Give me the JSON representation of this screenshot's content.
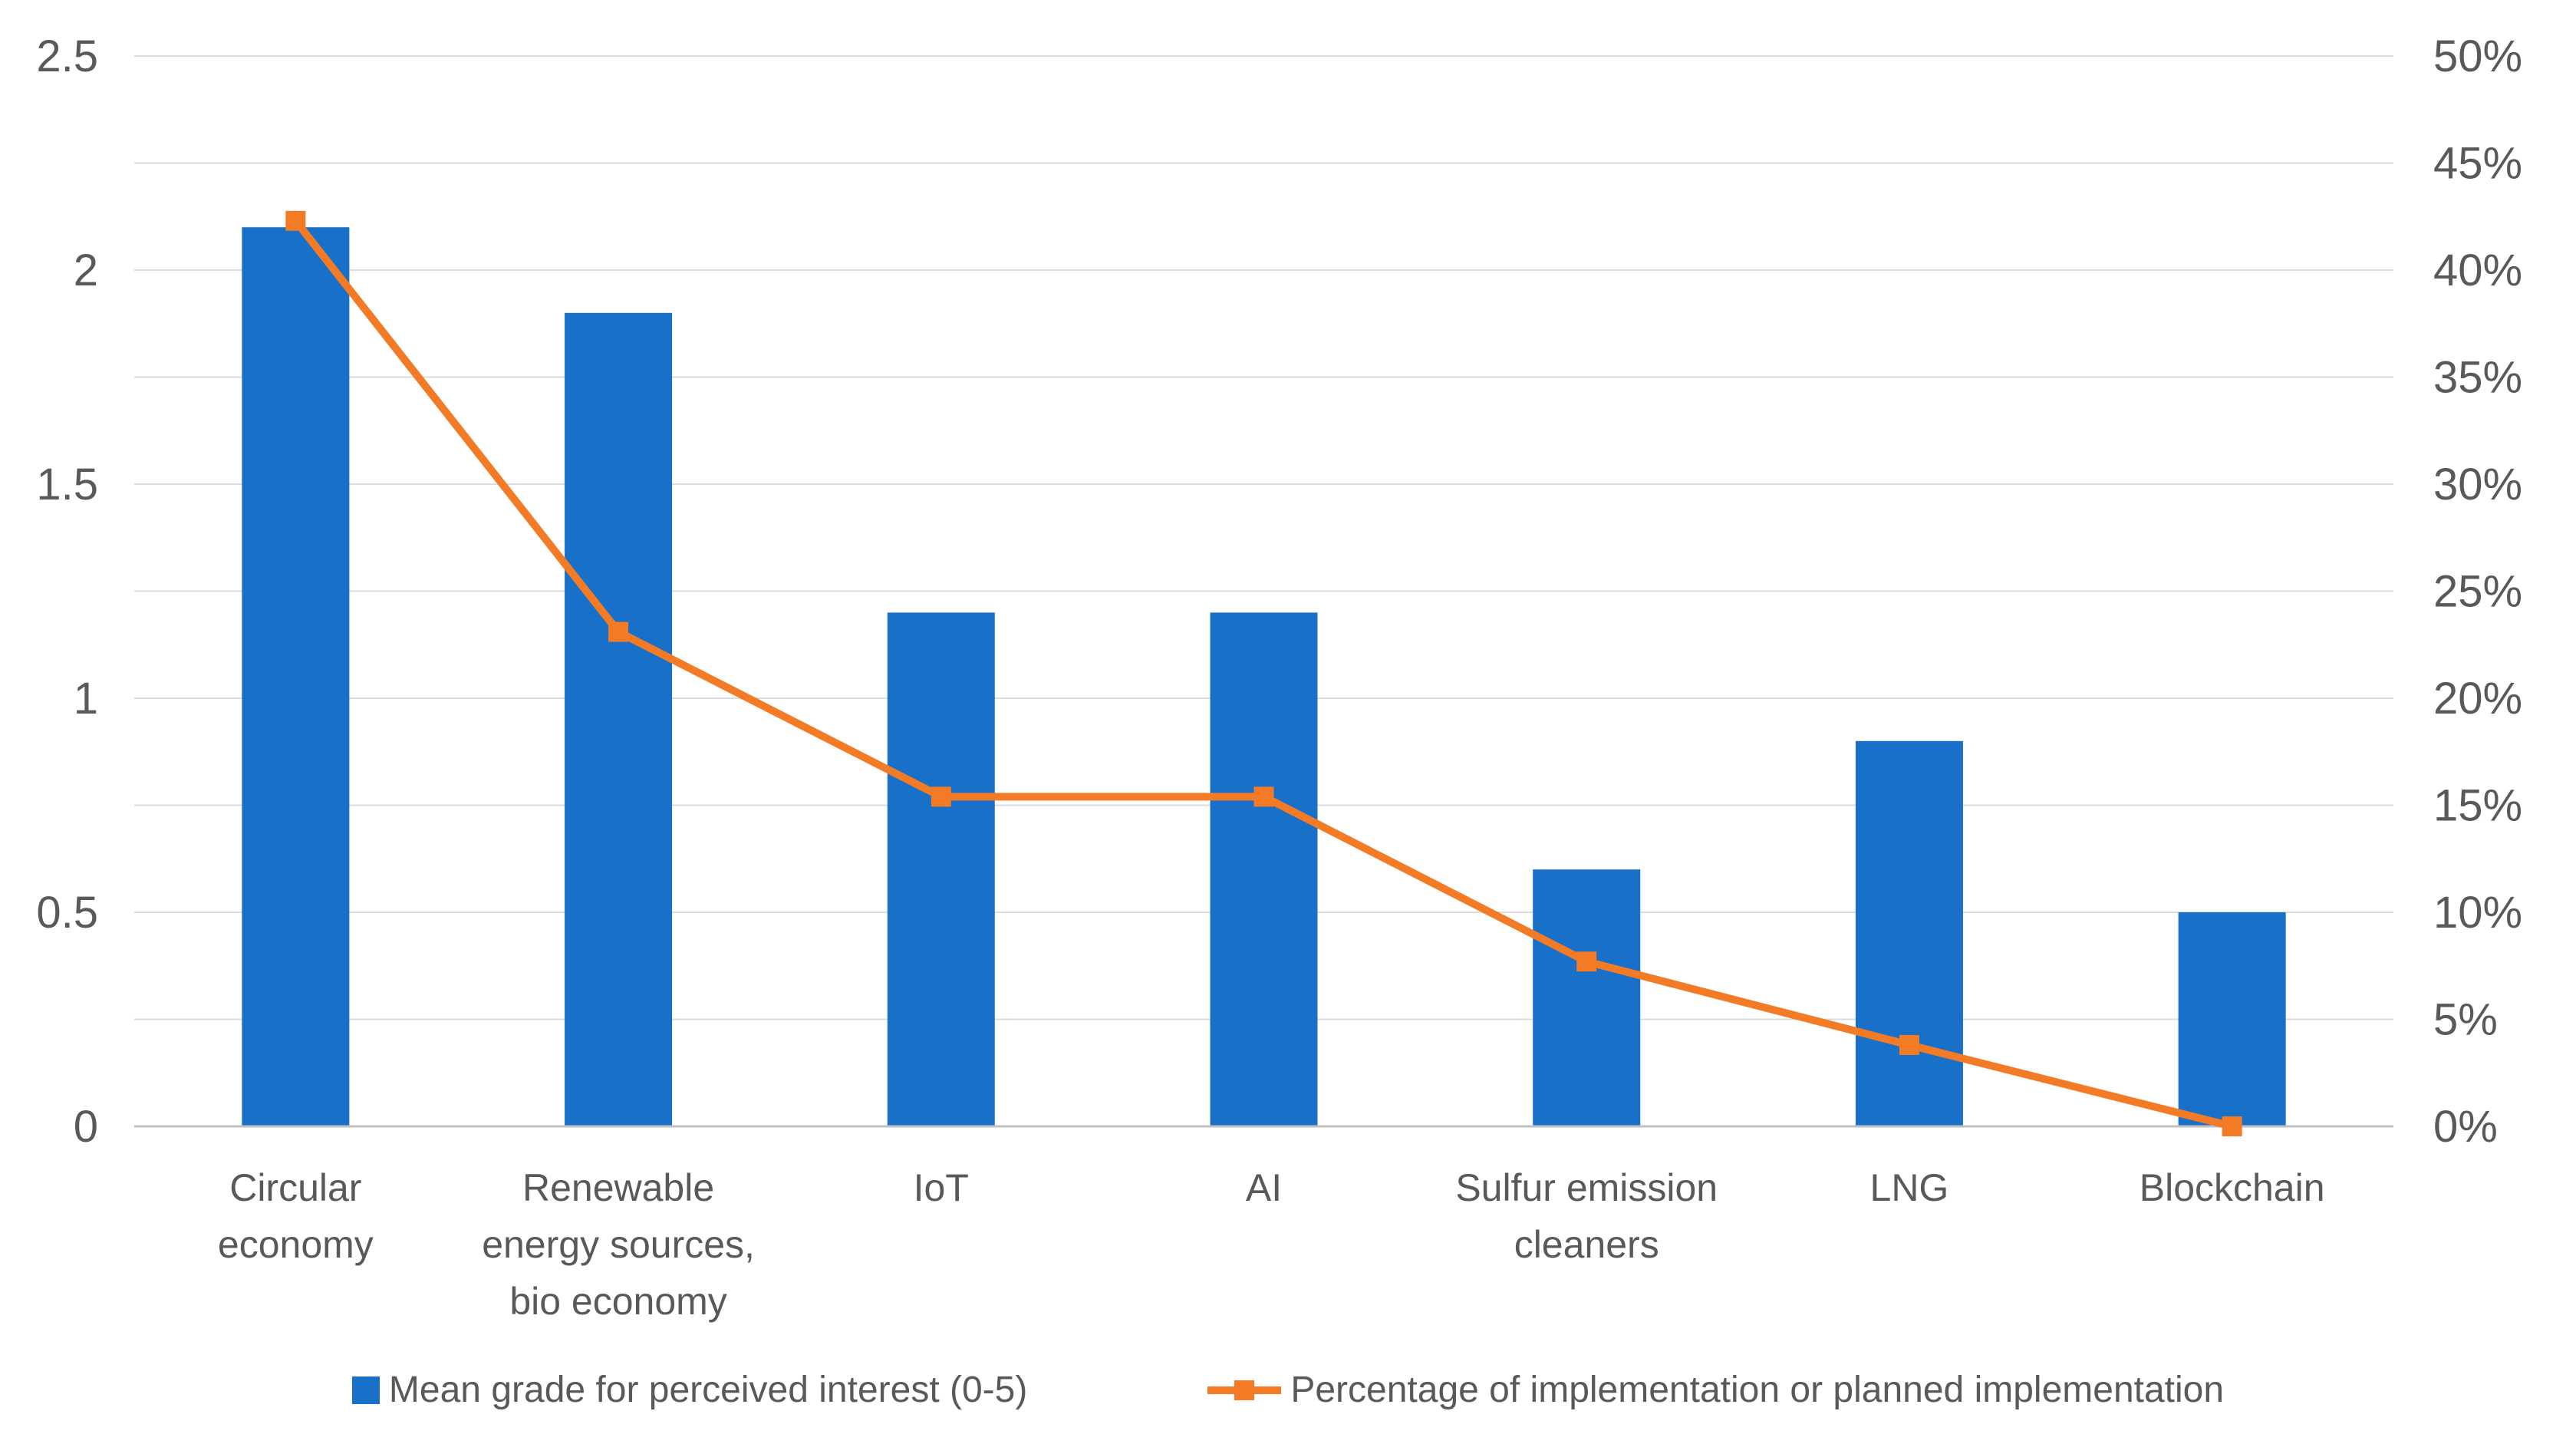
{
  "chart_data": {
    "type": "bar",
    "subtype": "combo-bar-line-two-axes",
    "title": "",
    "xlabel": "",
    "ylabel": "",
    "background": "#FFFFFF",
    "text_color": "#595959",
    "gridline_color": "#DCDCDC",
    "axis_line_color": "#C0C0C0",
    "grid": "horizontal",
    "legend_position": "bottom",
    "categories": [
      {
        "label": "Circular economy",
        "lines": [
          "Circular",
          "economy"
        ]
      },
      {
        "label": "Renewable energy sources, bio economy",
        "lines": [
          "Renewable",
          "energy sources,",
          "bio economy"
        ]
      },
      {
        "label": "IoT",
        "lines": [
          "IoT"
        ]
      },
      {
        "label": "AI",
        "lines": [
          "AI"
        ]
      },
      {
        "label": "Sulfur emission cleaners",
        "lines": [
          "Sulfur emission",
          "cleaners"
        ]
      },
      {
        "label": "LNG",
        "lines": [
          "LNG"
        ]
      },
      {
        "label": "Blockchain",
        "lines": [
          "Blockchain"
        ]
      }
    ],
    "series": [
      {
        "name": "Mean grade for perceived interest (0-5)",
        "type": "bar",
        "axis": "left",
        "color": "#1870C8",
        "values": [
          2.1,
          1.9,
          1.2,
          1.2,
          0.6,
          0.9,
          0.5
        ]
      },
      {
        "name": "Percentage of implementation or planned implementation",
        "type": "line",
        "axis": "right",
        "color": "#F37B26",
        "marker": "square",
        "values": [
          42.3,
          23.1,
          15.4,
          15.4,
          7.7,
          3.8,
          0
        ]
      }
    ],
    "left_axis": {
      "min": 0,
      "max": 2.5,
      "ticks": [
        "2.5",
        "2",
        "1.5",
        "1",
        "0.5",
        "0"
      ]
    },
    "right_axis": {
      "min": 0,
      "max": 50,
      "unit": "%",
      "ticks": [
        "50%",
        "45%",
        "40%",
        "35%",
        "30%",
        "25%",
        "20%",
        "15%",
        "10%",
        "5%",
        "0%"
      ]
    }
  },
  "legend": {
    "bar_label": "Mean grade for perceived interest (0-5)",
    "line_label": "Percentage of implementation or planned implementation"
  }
}
